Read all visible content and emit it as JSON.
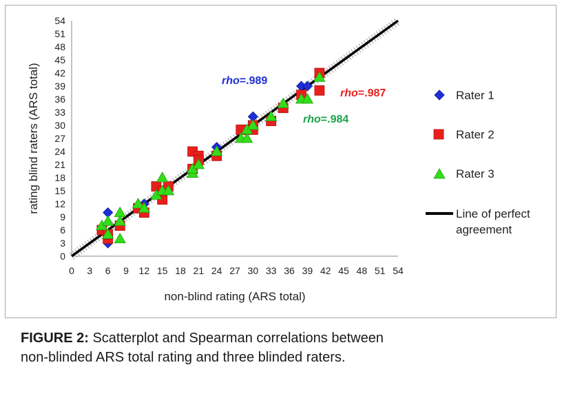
{
  "caption": {
    "label": "FIGURE 2:",
    "line1": " Scatterplot and Spearman correlations between",
    "line2": "non-blinded ARS total rating and three blinded raters."
  },
  "chart_data": {
    "type": "scatter",
    "xlabel": "non-blind rating (ARS total)",
    "ylabel": "rating blind raters (ARS total)",
    "xlim": [
      0,
      54
    ],
    "ylim": [
      0,
      54
    ],
    "xticks": [
      0,
      3,
      6,
      9,
      12,
      15,
      18,
      21,
      24,
      27,
      30,
      33,
      36,
      39,
      42,
      45,
      48,
      51,
      54
    ],
    "yticks": [
      0,
      3,
      6,
      9,
      12,
      15,
      18,
      21,
      24,
      27,
      30,
      33,
      36,
      39,
      42,
      45,
      48,
      51,
      54
    ],
    "grid": false,
    "legend_position": "right",
    "series": [
      {
        "name": "Rater 1",
        "marker": "diamond",
        "color": "#1f2fd6",
        "x": [
          6,
          6,
          12,
          24,
          30,
          38,
          39
        ],
        "y": [
          10,
          3,
          12,
          25,
          32,
          39,
          39
        ]
      },
      {
        "name": "Rater 2",
        "marker": "square",
        "color": "#e8201c",
        "x": [
          5,
          6,
          6,
          8,
          11,
          12,
          14,
          15,
          15,
          16,
          20,
          20,
          21,
          21,
          24,
          28,
          30,
          30,
          33,
          35,
          38,
          41,
          41
        ],
        "y": [
          6,
          4,
          5,
          7,
          11,
          10,
          16,
          13,
          15,
          16,
          24,
          20,
          23,
          22,
          23,
          29,
          30,
          29,
          31,
          34,
          37,
          42,
          38
        ]
      },
      {
        "name": "Rater 3",
        "marker": "triangle",
        "color": "#33dd1a",
        "x": [
          5,
          6,
          6,
          8,
          8,
          8,
          11,
          12,
          14,
          15,
          15,
          16,
          20,
          20,
          21,
          24,
          28,
          29,
          29,
          30,
          33,
          35,
          38,
          39,
          41
        ],
        "y": [
          7,
          8,
          5,
          4,
          8,
          10,
          12,
          11,
          14,
          18,
          15,
          15,
          19,
          20,
          21,
          24,
          27,
          27,
          29,
          30,
          32,
          35,
          36,
          36,
          41
        ]
      }
    ],
    "reference_line": {
      "label_line1": "Line of perfect",
      "label_line2": "agreement",
      "from": [
        0,
        0
      ],
      "to": [
        54,
        54
      ],
      "color": "#000000"
    },
    "annotations": [
      {
        "prefix": "rho",
        "text": "=.989",
        "color": "#1f2fd6"
      },
      {
        "prefix": "rho",
        "text": "=.987",
        "color": "#e8201c"
      },
      {
        "prefix": "rho",
        "text": "=.984",
        "color": "#1aa34a"
      }
    ]
  }
}
